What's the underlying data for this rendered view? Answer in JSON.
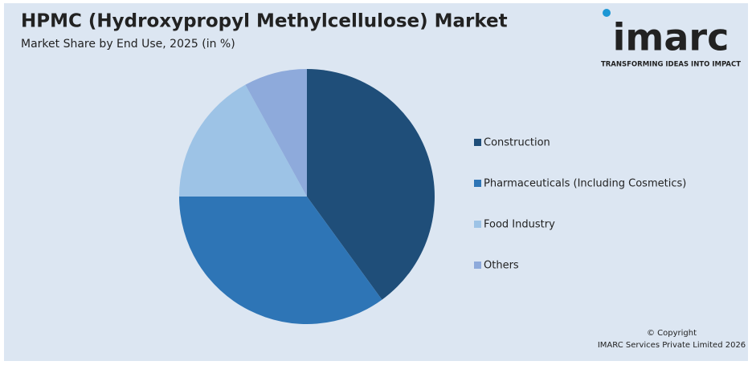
{
  "chart_data": {
    "type": "pie",
    "title": "HPMC (Hydroxypropyl Methylcellulose) Market",
    "subtitle": "Market Share by End Use, 2025 (in %)",
    "categories": [
      "Construction",
      "Pharmaceuticals (Including Cosmetics)",
      "Food Industry",
      "Others"
    ],
    "values": [
      40,
      35,
      17,
      8
    ],
    "colors": [
      "#1f4e79",
      "#2e75b6",
      "#9dc3e6",
      "#8eaadb"
    ],
    "legend": "right"
  },
  "logo": {
    "name": "imarc",
    "tagline": "TRANSFORMING IDEAS INTO IMPACT"
  },
  "footer": {
    "copyright": "© Copyright",
    "owner": "IMARC Services Private Limited 2026"
  }
}
